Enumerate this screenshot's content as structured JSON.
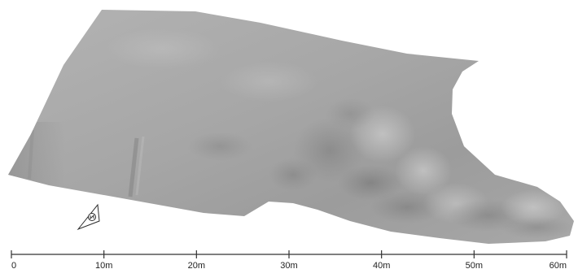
{
  "scale_bar": {
    "unit": "m",
    "ticks": [
      {
        "value": 0,
        "label": "0"
      },
      {
        "value": 10,
        "label": "10m"
      },
      {
        "value": 20,
        "label": "20m"
      },
      {
        "value": 30,
        "label": "30m"
      },
      {
        "value": 40,
        "label": "40m"
      },
      {
        "value": 50,
        "label": "50m"
      },
      {
        "value": 60,
        "label": "60m"
      }
    ],
    "min": 0,
    "max": 60
  },
  "north_arrow": {
    "icon": "north-arrow-icon"
  },
  "colors": {
    "terrain_light": "#b8b8b8",
    "terrain_mid": "#9a9a9a",
    "terrain_dark": "#6e6e6e",
    "scale_line": "#333333",
    "label": "#222222"
  }
}
